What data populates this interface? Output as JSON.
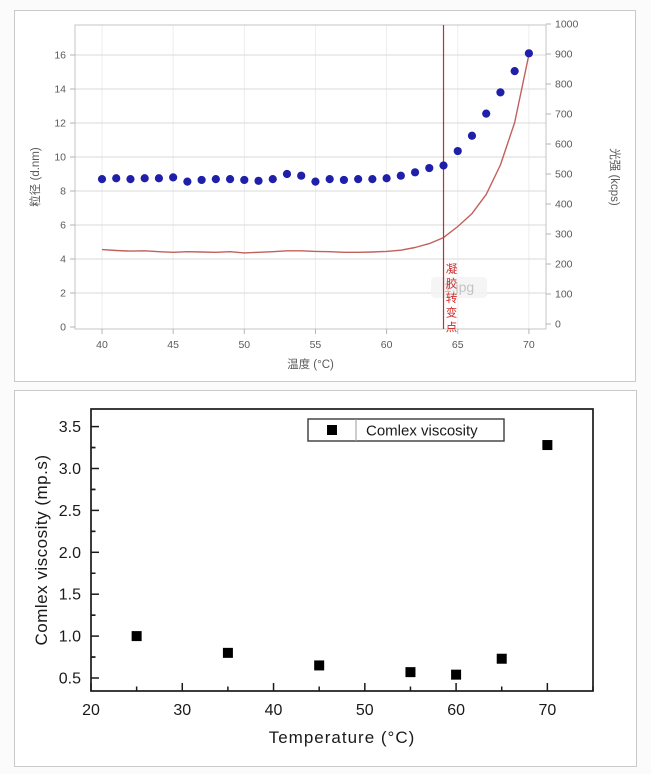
{
  "chart_data": [
    {
      "type": "scatter",
      "title": "",
      "xlabel": "温度 (°C)",
      "ylabel_left": "粒径 (d.nm)",
      "ylabel_right": "光强 (kcps)",
      "x_ticks": [
        40,
        45,
        50,
        55,
        60,
        65,
        70
      ],
      "y_left_ticks": [
        0,
        2,
        4,
        6,
        8,
        10,
        12,
        14,
        16
      ],
      "y_right_ticks": [
        0,
        100,
        200,
        300,
        400,
        500,
        600,
        700,
        800,
        900,
        1000
      ],
      "xlim": [
        38,
        71.3
      ],
      "ylim_left": [
        0,
        17.8
      ],
      "ylim_right": [
        0,
        1000
      ],
      "grid": true,
      "legend_position": "none",
      "x": [
        40,
        41,
        42,
        43,
        44,
        45,
        46,
        47,
        48,
        49,
        50,
        51,
        52,
        53,
        54,
        55,
        56,
        57,
        58,
        59,
        60,
        61,
        62,
        63,
        64,
        65,
        66,
        67,
        68,
        69,
        70
      ],
      "series": [
        {
          "name": "粒径",
          "type": "scatter",
          "marker": "circle",
          "axis": "left",
          "color": "#1f1faa",
          "values": [
            8.7,
            8.75,
            8.7,
            8.75,
            8.75,
            8.8,
            8.55,
            8.65,
            8.7,
            8.7,
            8.65,
            8.6,
            8.7,
            9.0,
            8.9,
            8.55,
            8.7,
            8.65,
            8.7,
            8.7,
            8.75,
            8.9,
            9.1,
            9.35,
            9.5,
            10.35,
            11.25,
            12.55,
            13.8,
            15.05,
            16.1
          ]
        },
        {
          "name": "光强",
          "type": "line",
          "axis": "right",
          "color": "#bf5753",
          "values": [
            248,
            245,
            243,
            244,
            241,
            239,
            241,
            240,
            239,
            241,
            237,
            239,
            241,
            244,
            244,
            242,
            241,
            239,
            239,
            240,
            242,
            246,
            255,
            268,
            288,
            325,
            368,
            432,
            530,
            672,
            898
          ]
        }
      ],
      "vline": {
        "x": 64,
        "color": "#cc2a2a",
        "label": "凝胶转变点"
      },
      "watermark": "1.jpg"
    },
    {
      "type": "scatter",
      "title": "",
      "xlabel": "Temperature (°C)",
      "ylabel": "Comlex viscosity (mp.s)",
      "legend": [
        {
          "label": "Comlex viscosity",
          "marker": "square",
          "color": "#000000"
        }
      ],
      "legend_position": "top-center",
      "x_ticks": [
        20,
        30,
        40,
        50,
        60,
        70
      ],
      "y_ticks": [
        0.5,
        1.0,
        1.5,
        2.0,
        2.5,
        3.0,
        3.5
      ],
      "xlim": [
        20,
        75
      ],
      "ylim": [
        0.35,
        3.7
      ],
      "grid": false,
      "marker": "square",
      "color": "#000000",
      "x": [
        25,
        35,
        45,
        55,
        60,
        65,
        70
      ],
      "values": [
        1.0,
        0.8,
        0.65,
        0.57,
        0.54,
        0.73,
        3.28
      ]
    }
  ]
}
